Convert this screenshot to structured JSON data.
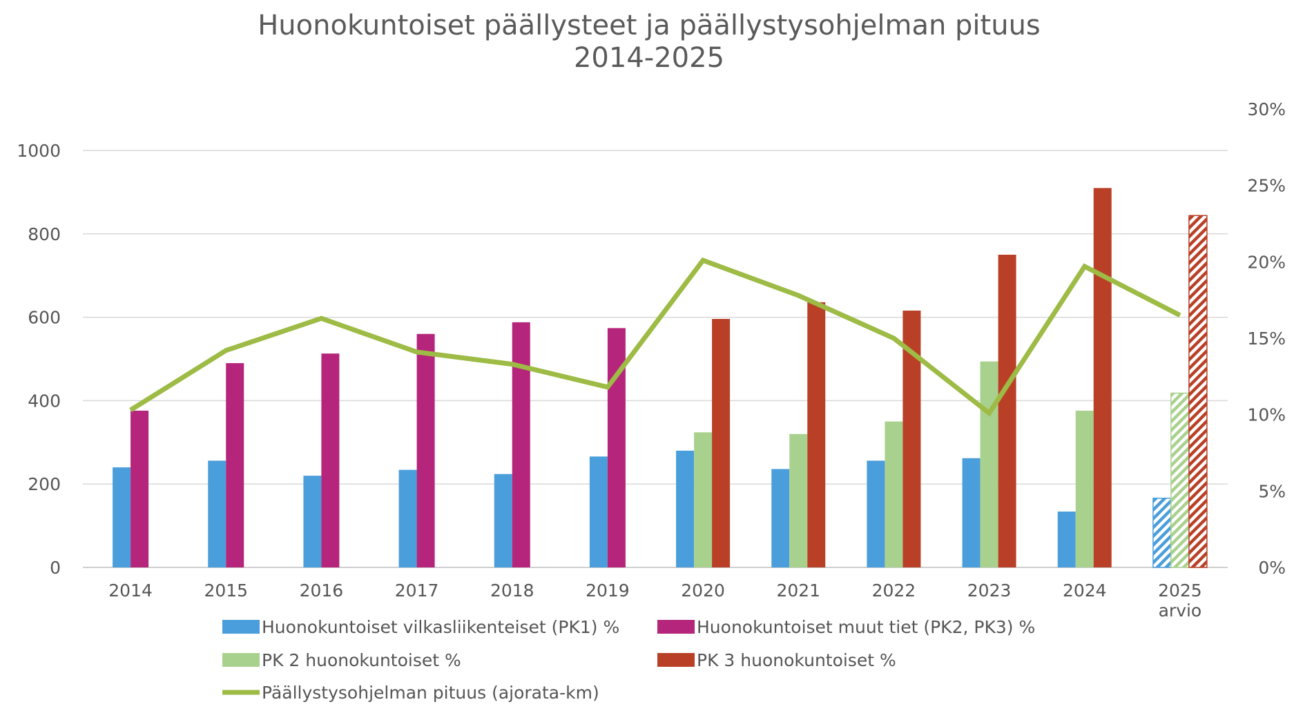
{
  "chart_data": {
    "type": "bar",
    "title": [
      "Huonokuntoiset päällysteet ja päällystysohjelman pituus",
      "2014-2025"
    ],
    "categories": [
      [
        "2014"
      ],
      [
        "2015"
      ],
      [
        "2016"
      ],
      [
        "2017"
      ],
      [
        "2018"
      ],
      [
        "2019"
      ],
      [
        "2020"
      ],
      [
        "2021"
      ],
      [
        "2022"
      ],
      [
        "2023"
      ],
      [
        "2024"
      ],
      [
        "2025",
        "arvio"
      ]
    ],
    "left_axis": {
      "ticks": [
        "0",
        "200",
        "400",
        "600",
        "800",
        "1000"
      ],
      "ylim": [
        0,
        1000
      ],
      "grid": true
    },
    "right_axis": {
      "ticks": [
        "0%",
        "5%",
        "10%",
        "15%",
        "20%",
        "25%",
        "30%"
      ],
      "ylim": [
        0,
        30
      ]
    },
    "series": [
      {
        "name": "Huonokuntoiset vilkasliikenteiset (PK1) %",
        "kind": "bar",
        "axis": "left",
        "color": "#4a9edb",
        "values": [
          240,
          256,
          220,
          234,
          224,
          266,
          280,
          236,
          256,
          262,
          134,
          166
        ]
      },
      {
        "name": "Huonokuntoiset muut tiet (PK2, PK3) %",
        "kind": "bar",
        "axis": "left",
        "color": "#b5257b",
        "values": [
          376,
          490,
          513,
          560,
          588,
          574,
          null,
          null,
          null,
          null,
          null,
          null
        ]
      },
      {
        "name": "PK 2 huonokuntoiset %",
        "kind": "bar",
        "axis": "left",
        "color": "#a9d18e",
        "values": [
          null,
          null,
          null,
          null,
          null,
          null,
          324,
          320,
          350,
          494,
          376,
          418
        ]
      },
      {
        "name": "PK 3 huonokuntoiset %",
        "kind": "bar",
        "axis": "left",
        "color": "#b94027",
        "values": [
          null,
          null,
          null,
          null,
          null,
          null,
          596,
          636,
          616,
          750,
          910,
          844
        ]
      },
      {
        "name": "Päällystysohjelman pituus (ajorata-km)",
        "kind": "line",
        "axis": "right",
        "color": "#9dbb45",
        "values": [
          10.3,
          14.2,
          16.3,
          14.1,
          13.3,
          11.8,
          20.1,
          17.8,
          15.0,
          10.1,
          19.7,
          16.5
        ]
      }
    ],
    "hatched_categories": [
      "2025"
    ],
    "legend": {
      "placement": "bottom"
    }
  }
}
